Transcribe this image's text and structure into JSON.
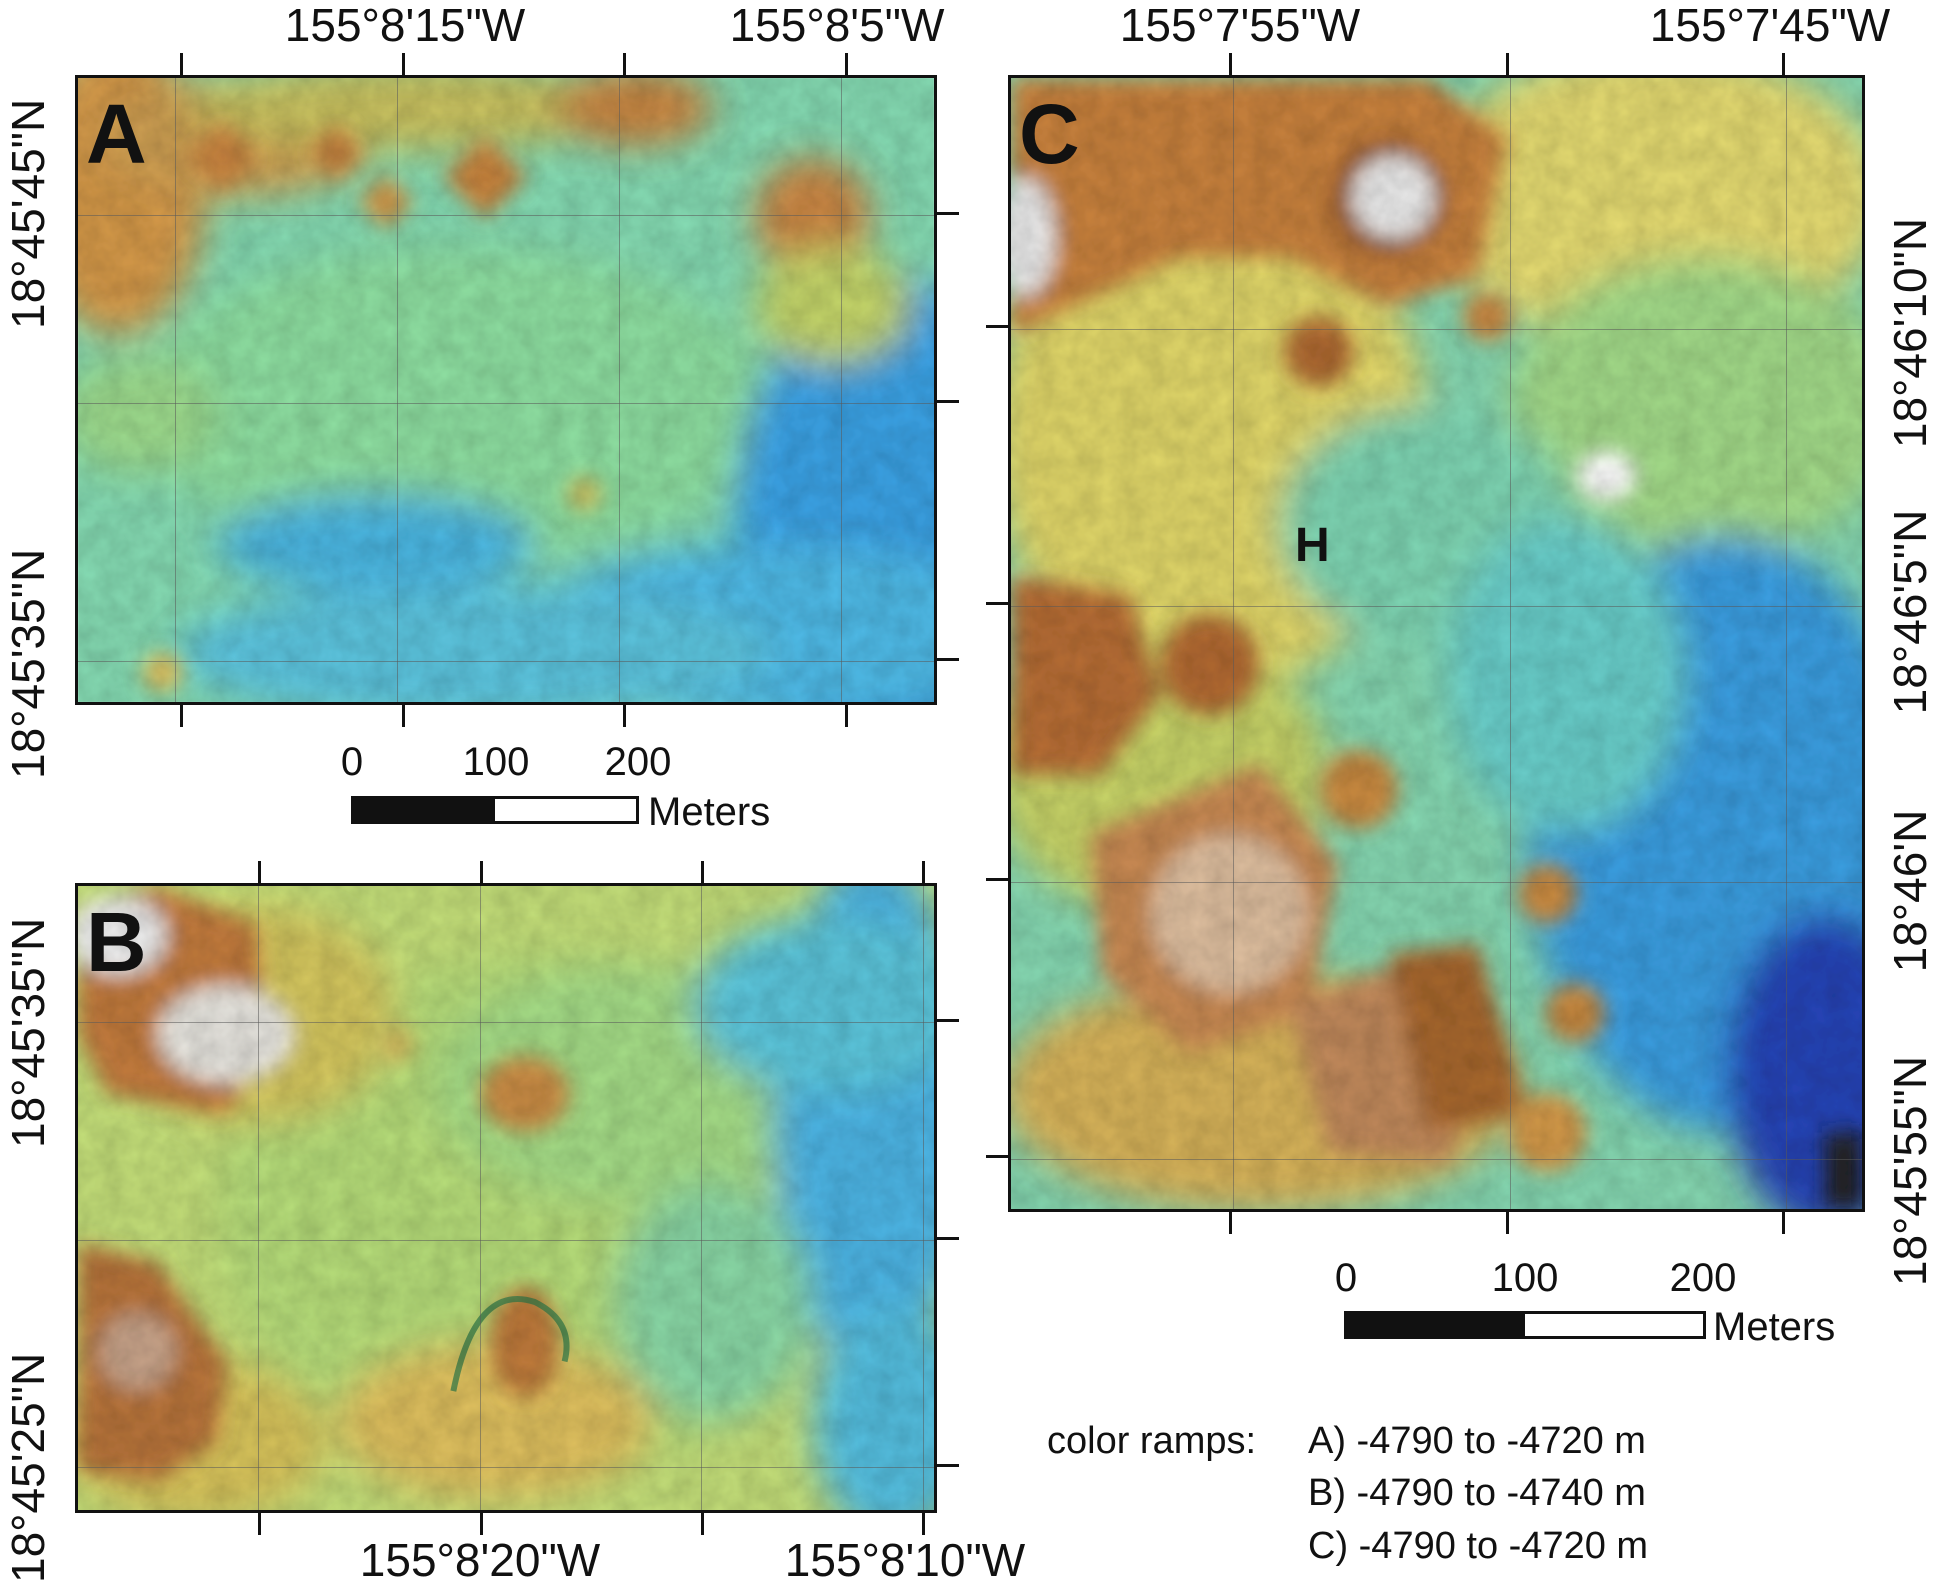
{
  "panels": {
    "a": {
      "letter": "A",
      "lon_labels": [
        "155°8'15\"W",
        "155°8'5\"W"
      ],
      "lat_labels": [
        "18°45'45\"N",
        "18°45'35\"N"
      ]
    },
    "b": {
      "letter": "B",
      "lon_labels": [
        "155°8'20\"W",
        "155°8'10\"W"
      ],
      "lat_labels": [
        "18°45'35\"N",
        "18°45'25\"N"
      ]
    },
    "c": {
      "letter": "C",
      "lon_labels": [
        "155°7'55\"W",
        "155°7'45\"W"
      ],
      "lat_labels": [
        "18°46'10\"N",
        "18°46'5\"N",
        "18°46'N",
        "18°45'55\"N"
      ],
      "feature_label": "H"
    }
  },
  "scale_bars": {
    "top": {
      "ticks": [
        "0",
        "100",
        "200"
      ],
      "unit": "Meters"
    },
    "right": {
      "ticks": [
        "0",
        "100",
        "200"
      ],
      "unit": "Meters"
    }
  },
  "legend": {
    "prefix": "color ramps:",
    "lines": [
      "A) -4790 to -4720 m",
      "B) -4790 to -4740 m",
      "C) -4790 to -4720 m"
    ]
  },
  "colors": {
    "ramp": [
      "#1f3aa8",
      "#2a8fe0",
      "#4fc8e6",
      "#72d9b0",
      "#a5e07a",
      "#e0e06a",
      "#e3b657",
      "#c9813a",
      "#8a5426",
      "#f2f2f2"
    ],
    "frame": "#111111"
  }
}
